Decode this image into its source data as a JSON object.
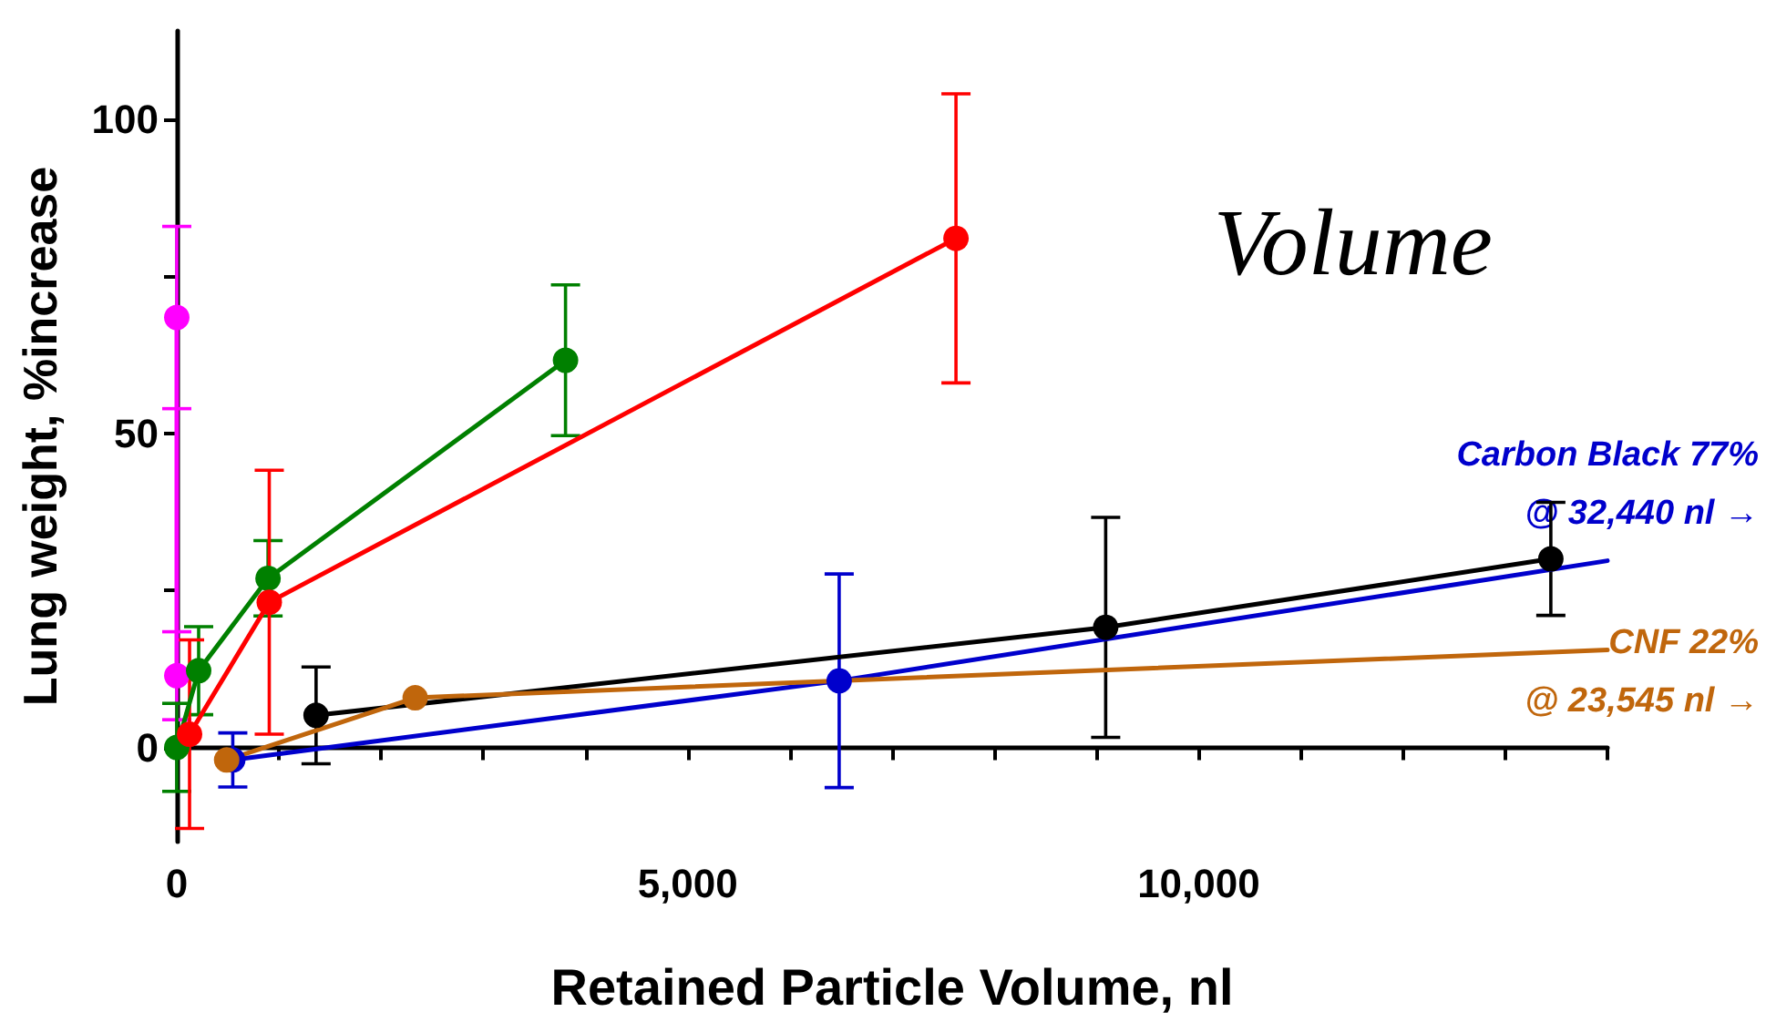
{
  "chart_data": {
    "type": "line",
    "xlabel": "Retained Particle Volume, nl",
    "ylabel": "Lung weight, %increase",
    "xlim": [
      0,
      14000
    ],
    "ylim": [
      -15,
      114
    ],
    "xticks": [
      0,
      {
        "value": 1000,
        "label": null
      },
      {
        "value": 2000,
        "label": null
      },
      {
        "value": 3000,
        "label": null
      },
      {
        "value": 4000,
        "label": null
      },
      {
        "value": 5000,
        "label": "5,000"
      },
      {
        "value": 6000,
        "label": null
      },
      {
        "value": 7000,
        "label": null
      },
      {
        "value": 8000,
        "label": null
      },
      {
        "value": 9000,
        "label": null
      },
      {
        "value": 10000,
        "label": "10,000"
      },
      {
        "value": 11000,
        "label": null
      },
      {
        "value": 12000,
        "label": null
      },
      {
        "value": 13000,
        "label": null
      },
      {
        "value": 14000,
        "label": null
      }
    ],
    "yticks": [
      0,
      {
        "value": 25,
        "label": null
      },
      50,
      {
        "value": 75,
        "label": null
      },
      100
    ],
    "legend": false,
    "marker": "circle",
    "line_style": "solid",
    "annotations": [
      "Volume"
    ],
    "series": [
      {
        "color": "#ff00ff",
        "x": [
          0,
          0
        ],
        "values": [
          68.4,
          11.4
        ],
        "errors": [
          14.5,
          7
        ]
      },
      {
        "color": "#008000",
        "x": [
          0,
          214,
          893,
          3804
        ],
        "values": [
          0,
          12.2,
          26.9,
          61.6
        ],
        "errors": [
          7,
          7,
          6,
          12
        ]
      },
      {
        "color": "#ff0000",
        "x": [
          125,
          905,
          7625
        ],
        "values": [
          2.1,
          23.1,
          81
        ],
        "errors": [
          15,
          21,
          23
        ]
      },
      {
        "color": "#000000",
        "x": [
          1363,
          9090,
          13446
        ],
        "values": [
          5.1,
          19.1,
          30
        ],
        "errors": [
          7.7,
          17.5,
          9
        ]
      },
      {
        "color": "#0000cc",
        "x": [
          548,
          6482
        ],
        "values": [
          -2,
          10.6
        ],
        "errors": [
          4.3,
          17
        ]
      },
      {
        "color": "#0000cc",
        "name": "Carbon Black 77%\n@ 32,440 nl →",
        "marker": "none",
        "x": [
          6482,
          14000
        ],
        "values": [
          10.6,
          29.7
        ]
      },
      {
        "color": "#c0660c",
        "x": [
          488,
          2333
        ],
        "values": [
          -2,
          7.9
        ]
      },
      {
        "color": "#c0660c",
        "name": "CNF 22%\n@ 23,545 nl →",
        "marker": "none",
        "x": [
          2333,
          14000
        ],
        "values": [
          7.9,
          15.5
        ]
      }
    ]
  }
}
